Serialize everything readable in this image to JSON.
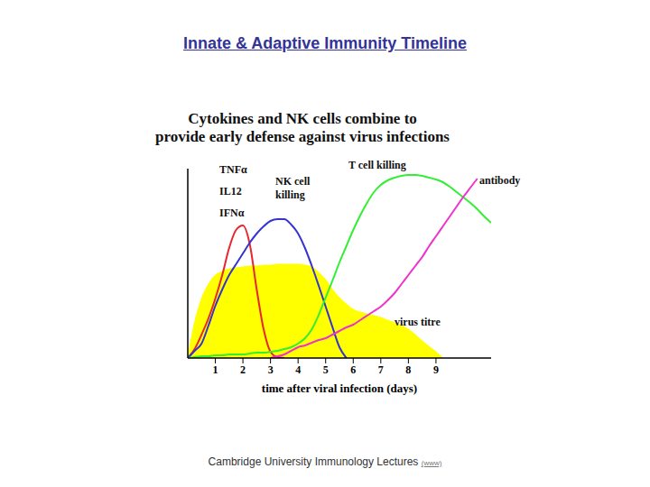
{
  "slide": {
    "title": "Innate & Adaptive Immunity Timeline",
    "footer": "Cambridge University Immunology Lectures",
    "footer_link": "(www)"
  },
  "chart_data": {
    "type": "line",
    "title": "Cytokines and NK cells combine to\nprovide early defense against virus infections",
    "x_label": "time after viral infection (days)",
    "tick_labels": "x",
    "xlim": [
      0,
      11
    ],
    "xticks": [
      1,
      2,
      3,
      4,
      5,
      6,
      7,
      8,
      9
    ],
    "ylim": [
      0,
      105
    ],
    "yticks": [],
    "x": [
      0,
      0.25,
      0.5,
      0.75,
      1,
      1.25,
      1.5,
      1.75,
      2,
      2.25,
      2.5,
      2.75,
      3,
      3.25,
      3.5,
      3.75,
      4,
      4.25,
      4.5,
      4.75,
      5,
      5.25,
      5.5,
      5.75,
      6,
      6.25,
      6.5,
      6.75,
      7,
      7.25,
      7.5,
      7.75,
      8,
      8.25,
      8.5,
      8.75,
      9,
      9.25,
      9.5,
      9.75,
      10,
      10.25,
      10.5,
      10.75,
      11
    ],
    "series": [
      {
        "name": "virus titre",
        "type": "area",
        "color": "#ffff00",
        "values": [
          0,
          20,
          33,
          41,
          46,
          48,
          49.5,
          50,
          50.5,
          51,
          51,
          51.5,
          51.5,
          52,
          52,
          52,
          52,
          51.5,
          50.5,
          47.5,
          43.5,
          38,
          33.5,
          30,
          27,
          25.5,
          24.5,
          23.5,
          22.5,
          21,
          19.5,
          18,
          16,
          13,
          9.5,
          6.5,
          3.5,
          0,
          null,
          null,
          null,
          null,
          null,
          null,
          null
        ]
      },
      {
        "name": "TNFα\nIL12\nIFNα",
        "type": "line",
        "color": "#e8262c",
        "values": [
          0,
          5,
          13,
          22,
          33,
          46,
          61,
          71,
          73.5,
          63,
          38,
          16,
          3.5,
          0.5,
          0,
          null,
          null,
          null,
          null,
          null,
          null,
          null,
          null,
          null,
          null,
          null,
          null,
          null,
          null,
          null,
          null,
          null,
          null,
          null,
          null,
          null,
          null,
          null,
          null,
          null,
          null,
          null,
          null,
          null,
          null
        ]
      },
      {
        "name": "NK cell\nkilling",
        "type": "line",
        "color": "#3434d0",
        "values": [
          0,
          4,
          8,
          18,
          29,
          38,
          46,
          52,
          58,
          64,
          69,
          73,
          76,
          77,
          77,
          74,
          69,
          61,
          51,
          40,
          28.5,
          17,
          6,
          0,
          null,
          null,
          null,
          null,
          null,
          null,
          null,
          null,
          null,
          null,
          null,
          null,
          null,
          null,
          null,
          null,
          null,
          null,
          null,
          null,
          null
        ]
      },
      {
        "name": "T cell killing",
        "type": "line",
        "color": "#33ee33",
        "values": [
          0,
          0.5,
          1,
          1,
          1.5,
          1.5,
          2,
          2,
          2,
          2.5,
          3,
          3,
          3.5,
          4,
          5,
          6,
          8,
          11,
          16,
          24,
          33.5,
          43,
          53,
          62,
          71,
          79,
          86,
          92,
          96,
          98.5,
          100,
          101,
          101.5,
          101.5,
          101,
          100,
          99,
          97.5,
          95,
          92,
          89,
          86,
          82.5,
          78.5,
          75
        ]
      },
      {
        "name": "antibody",
        "type": "line",
        "color": "#ee33cc",
        "values": [
          null,
          null,
          null,
          null,
          null,
          null,
          null,
          null,
          null,
          null,
          null,
          null,
          0,
          1,
          2,
          4,
          6,
          7,
          8.5,
          10,
          11,
          13,
          15,
          17,
          18.5,
          21,
          23.5,
          26,
          28.5,
          32,
          36,
          41,
          46,
          51,
          56,
          62,
          67.5,
          73,
          78.5,
          84,
          89.5,
          94.5,
          99.5,
          null,
          null
        ]
      }
    ]
  }
}
